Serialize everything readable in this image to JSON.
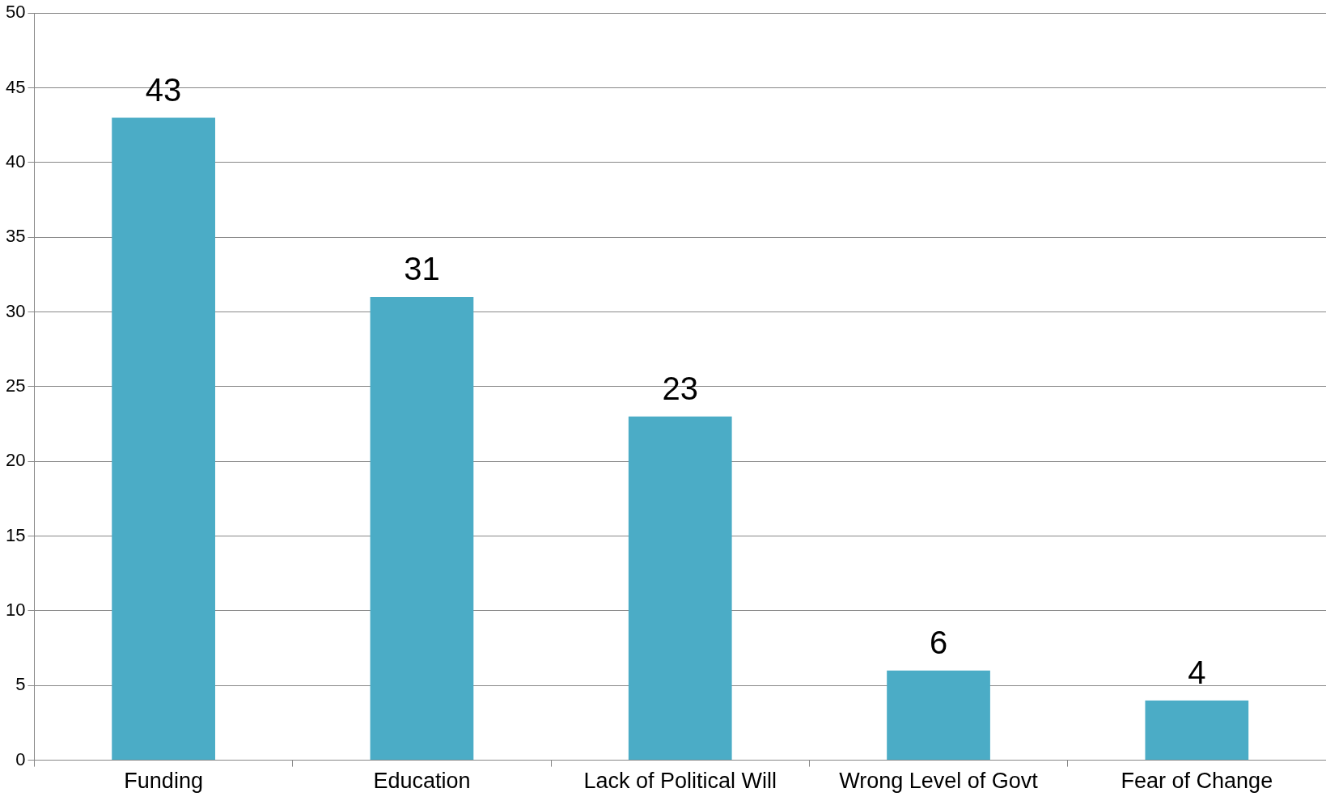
{
  "chart_data": {
    "type": "bar",
    "categories": [
      "Funding",
      "Education",
      "Lack of Political Will",
      "Wrong Level of Govt",
      "Fear of Change"
    ],
    "values": [
      43,
      31,
      23,
      6,
      4
    ],
    "color": "#4bacc6",
    "ylim": [
      0,
      50
    ],
    "yticks": [
      0,
      5,
      10,
      15,
      20,
      25,
      30,
      35,
      40,
      45,
      50
    ],
    "grid": "y",
    "legend": false,
    "data_labels": true
  }
}
